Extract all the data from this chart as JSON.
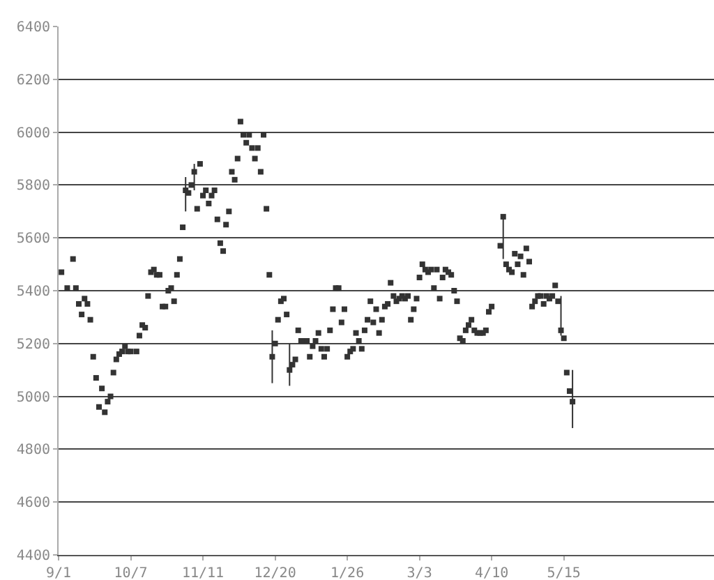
{
  "chart_data": {
    "type": "scatter",
    "marker": "square",
    "grid": "y",
    "legend": false,
    "categories": [
      "9/1",
      null,
      null,
      null,
      null,
      null,
      null,
      null,
      null,
      null,
      null,
      null,
      null,
      null,
      null,
      null,
      null,
      null,
      null,
      null,
      null,
      null,
      null,
      null,
      null,
      "10/7",
      null,
      null,
      null,
      null,
      null,
      null,
      null,
      null,
      null,
      null,
      null,
      null,
      null,
      null,
      null,
      null,
      null,
      null,
      null,
      null,
      null,
      null,
      null,
      null,
      "11/11",
      null,
      null,
      null,
      null,
      null,
      null,
      null,
      null,
      null,
      null,
      null,
      null,
      null,
      null,
      null,
      null,
      null,
      null,
      null,
      null,
      null,
      null,
      null,
      null,
      "12/20",
      null,
      null,
      null,
      null,
      null,
      null,
      null,
      null,
      null,
      null,
      null,
      null,
      null,
      null,
      null,
      null,
      null,
      null,
      null,
      null,
      null,
      null,
      null,
      null,
      "1/26",
      null,
      null,
      null,
      null,
      null,
      null,
      null,
      null,
      null,
      null,
      null,
      null,
      null,
      null,
      null,
      null,
      null,
      null,
      null,
      null,
      null,
      null,
      null,
      null,
      "3/3",
      null,
      null,
      null,
      null,
      null,
      null,
      null,
      null,
      null,
      null,
      null,
      null,
      null,
      null,
      null,
      null,
      null,
      null,
      null,
      null,
      null,
      null,
      null,
      null,
      "4/10",
      null,
      null,
      null,
      null,
      null,
      null,
      null,
      null,
      null,
      null,
      null,
      null,
      null,
      null,
      null,
      null,
      null,
      null,
      null,
      null,
      null,
      null,
      null,
      null,
      "5/15",
      null,
      null,
      null,
      null,
      null,
      null,
      null,
      null,
      null,
      null,
      null,
      null,
      null,
      null,
      null,
      null,
      null,
      null,
      null,
      null,
      null,
      null,
      null,
      null,
      null,
      null,
      null,
      null,
      null,
      null,
      null,
      null,
      null,
      null,
      null,
      null,
      null,
      null,
      null,
      null,
      null,
      null,
      null,
      null,
      null,
      null,
      null,
      null,
      null,
      null,
      null,
      null
    ],
    "series": [
      {
        "color": "#333333",
        "values": [
          null,
          5470,
          null,
          5410,
          null,
          5520,
          5410,
          5350,
          5310,
          5370,
          5350,
          5290,
          5150,
          5070,
          4960,
          5030,
          4940,
          4980,
          5000,
          5090,
          5140,
          5160,
          5170,
          5190,
          5170,
          5170,
          null,
          5170,
          5230,
          5270,
          5260,
          5380,
          5470,
          5480,
          5460,
          5460,
          5340,
          5340,
          5400,
          5410,
          5360,
          5460,
          5520,
          5640,
          5780,
          5770,
          5800,
          5850,
          5710,
          5880,
          5760,
          5780,
          5730,
          5760,
          5780,
          5670,
          5580,
          5550,
          5650,
          5700,
          5850,
          5820,
          5900,
          6040,
          5990,
          5960,
          5990,
          5940,
          5900,
          5940,
          5850,
          5990,
          5710,
          5460,
          5150,
          5200,
          5290,
          5360,
          5370,
          5310,
          5100,
          5120,
          5140,
          5250,
          5210,
          5210,
          5210,
          5150,
          5190,
          5210,
          5240,
          5180,
          5150,
          5180,
          5250,
          5330,
          5410,
          5410,
          5280,
          5330,
          5150,
          5170,
          5180,
          5240,
          5210,
          5180,
          5250,
          5290,
          5360,
          5280,
          5330,
          5240,
          5290,
          5340,
          5350,
          5430,
          5380,
          5360,
          5370,
          5380,
          5370,
          5380,
          5290,
          5330,
          5370,
          5450,
          5500,
          5480,
          5470,
          5480,
          5410,
          5480,
          5370,
          5450,
          5480,
          5470,
          5460,
          5400,
          5360,
          5220,
          5210,
          5250,
          5270,
          5290,
          5250,
          5240,
          5240,
          5240,
          5250,
          5320,
          5340,
          null,
          null,
          5570,
          5680,
          5500,
          5480,
          5470,
          5540,
          5500,
          5530,
          5460,
          5560,
          5510,
          5340,
          5360,
          5380,
          5380,
          5350,
          5380,
          5370,
          5380,
          5420,
          5360,
          5250,
          5220,
          5090,
          5020,
          4980,
          null,
          null,
          null,
          null,
          null,
          null,
          null,
          null,
          null,
          null,
          null,
          null,
          null,
          null,
          null,
          null,
          null,
          null,
          null,
          null,
          null,
          null,
          null,
          null,
          null,
          null,
          null,
          null,
          null,
          null,
          null,
          null,
          null,
          null,
          null,
          null,
          null,
          null,
          null,
          null,
          null,
          null,
          null,
          null,
          null,
          null,
          null,
          null,
          null
        ],
        "errors": [
          null,
          null,
          null,
          null,
          null,
          null,
          null,
          null,
          null,
          null,
          null,
          null,
          null,
          null,
          null,
          null,
          null,
          null,
          null,
          null,
          null,
          null,
          null,
          null,
          null,
          null,
          null,
          null,
          null,
          null,
          null,
          null,
          null,
          null,
          null,
          null,
          null,
          null,
          null,
          null,
          null,
          null,
          null,
          null,
          [
            5700,
            5830
          ],
          null,
          null,
          [
            5780,
            5880
          ],
          null,
          null,
          null,
          null,
          null,
          null,
          null,
          null,
          null,
          null,
          null,
          null,
          null,
          null,
          null,
          null,
          null,
          null,
          null,
          null,
          null,
          null,
          null,
          null,
          null,
          null,
          [
            5050,
            5250
          ],
          null,
          null,
          null,
          null,
          null,
          [
            5040,
            5200
          ],
          null,
          null,
          null,
          null,
          null,
          null,
          null,
          null,
          null,
          null,
          null,
          null,
          null,
          null,
          null,
          null,
          null,
          null,
          null,
          null,
          null,
          null,
          null,
          null,
          null,
          null,
          null,
          null,
          null,
          null,
          null,
          null,
          null,
          null,
          null,
          null,
          null,
          null,
          null,
          null,
          null,
          null,
          null,
          null,
          null,
          null,
          null,
          null,
          null,
          null,
          null,
          null,
          null,
          null,
          null,
          null,
          null,
          null,
          null,
          null,
          null,
          null,
          null,
          null,
          null,
          null,
          null,
          null,
          null,
          null,
          null,
          null,
          null,
          [
            5520,
            5690
          ],
          null,
          null,
          null,
          null,
          null,
          null,
          null,
          null,
          null,
          null,
          null,
          null,
          null,
          null,
          null,
          null,
          null,
          null,
          null,
          [
            5230,
            5380
          ],
          null,
          null,
          null,
          [
            4880,
            5100
          ],
          null,
          null,
          null,
          null,
          null,
          null,
          null,
          null,
          null,
          null,
          null,
          null,
          null,
          null,
          null,
          null,
          null,
          null,
          null,
          null,
          null,
          null,
          null,
          null,
          null,
          null,
          null,
          null,
          null,
          null,
          null,
          null,
          null,
          null,
          null,
          null,
          null,
          null,
          null,
          null,
          null,
          null,
          null,
          null,
          null,
          null,
          null,
          null,
          null
        ]
      }
    ],
    "ylim": [
      4400,
      6400
    ],
    "yticks": [
      4400,
      4600,
      4800,
      5000,
      5200,
      5400,
      5600,
      5800,
      6000,
      6200,
      6400
    ]
  }
}
